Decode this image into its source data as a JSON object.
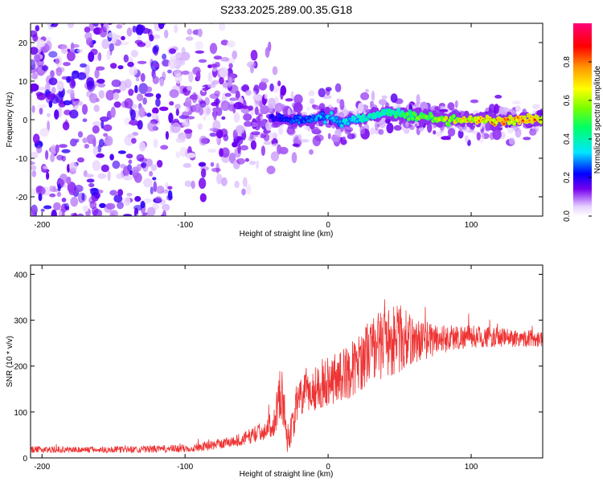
{
  "chart_data": [
    {
      "type": "heatmap",
      "title": "S233.2025.289.00.35.G18",
      "xlabel": "Height of straight line (km)",
      "ylabel": "Frequency (Hz)",
      "xlim": [
        -208,
        150
      ],
      "ylim": [
        -25,
        25
      ],
      "xticks": [
        -200,
        -100,
        0,
        100
      ],
      "xtick_labels": [
        "-200",
        "-100",
        "0",
        "100"
      ],
      "yticks": [
        -20,
        -10,
        0,
        10,
        20
      ],
      "ytick_labels": [
        "-20",
        "-10",
        "0",
        "10",
        "20"
      ],
      "colorbar": {
        "label": "Normalized spectral amplitude",
        "range": [
          0,
          1
        ],
        "ticks": [
          0.0,
          0.2,
          0.4,
          0.6,
          0.8
        ],
        "tick_labels": [
          "0.0",
          "0.2",
          "0.4",
          "0.6",
          "0.8"
        ]
      },
      "ridge": {
        "x": [
          -110,
          -90,
          -70,
          -50,
          -30,
          -10,
          0,
          10,
          20,
          40,
          60,
          80,
          100,
          120,
          150
        ],
        "frequency_hz": [
          6,
          4,
          2,
          1,
          0,
          0,
          1,
          -1,
          0,
          2,
          1,
          0,
          0,
          0,
          0
        ],
        "amplitude": [
          0.12,
          0.15,
          0.15,
          0.18,
          0.25,
          0.3,
          0.35,
          0.35,
          0.4,
          0.45,
          0.55,
          0.65,
          0.75,
          0.8,
          0.8
        ]
      }
    },
    {
      "type": "line",
      "xlabel": "Height of straight line (km)",
      "ylabel": "SNR (10 * v/v)",
      "xlim": [
        -208,
        150
      ],
      "ylim": [
        0,
        420
      ],
      "xticks": [
        -200,
        -100,
        0,
        100
      ],
      "xtick_labels": [
        "-200",
        "-100",
        "0",
        "100"
      ],
      "yticks": [
        0,
        100,
        200,
        300,
        400
      ],
      "ytick_labels": [
        "0",
        "100",
        "200",
        "300",
        "400"
      ],
      "series": [
        {
          "name": "SNR",
          "color": "#ee3333",
          "envelope_x": [
            -208,
            -150,
            -100,
            -80,
            -60,
            -45,
            -38,
            -33,
            -28,
            -20,
            -10,
            0,
            10,
            20,
            30,
            40,
            50,
            60,
            80,
            100,
            120,
            150
          ],
          "envelope_mean": [
            18,
            18,
            20,
            28,
            40,
            60,
            75,
            150,
            40,
            130,
            150,
            170,
            180,
            200,
            240,
            250,
            260,
            255,
            260,
            265,
            262,
            260
          ],
          "envelope_spread": [
            10,
            10,
            12,
            15,
            20,
            30,
            40,
            90,
            50,
            60,
            70,
            80,
            80,
            90,
            100,
            110,
            110,
            70,
            45,
            35,
            30,
            25
          ]
        }
      ]
    }
  ]
}
